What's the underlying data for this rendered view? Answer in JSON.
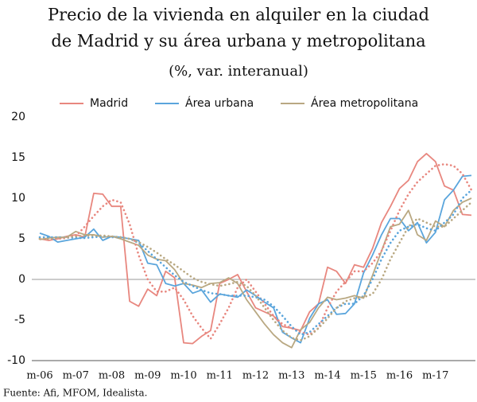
{
  "chart_data": {
    "type": "line",
    "title": [
      "Precio de la vivienda en alquiler en la ciudad",
      "de Madrid y su área urbana y metropolitana"
    ],
    "subtitle": "(%, var. interanual)",
    "source": "Fuente: Afi, MFOM, Idealista.",
    "categories": [
      "m-06",
      null,
      null,
      null,
      "m-07",
      null,
      null,
      null,
      "m-08",
      null,
      null,
      null,
      "m-09",
      null,
      null,
      null,
      "m-10",
      null,
      null,
      null,
      "m-11",
      null,
      null,
      null,
      "m-12",
      null,
      null,
      null,
      "m-13",
      null,
      null,
      null,
      "m-14",
      null,
      null,
      null,
      "m-15",
      null,
      null,
      null,
      "m-16",
      null,
      null,
      null,
      "m-17",
      null,
      null,
      null,
      null
    ],
    "ylim": [
      -10,
      20
    ],
    "yticks": [
      -10,
      -5,
      0,
      5,
      10,
      15,
      20
    ],
    "zero_line": true,
    "legend": "top",
    "series": [
      {
        "name": "Madrid",
        "color": "#e8877f",
        "values": [
          5.0,
          4.8,
          5.0,
          5.3,
          5.5,
          5.2,
          10.6,
          10.5,
          9.0,
          9.0,
          -2.7,
          -3.3,
          -1.2,
          -2.0,
          1.0,
          0.2,
          -7.8,
          -7.9,
          -7.0,
          -6.3,
          -0.5,
          0.0,
          0.6,
          -1.5,
          -3.5,
          -4.0,
          -4.5,
          -5.8,
          -6.0,
          -6.3,
          -4.0,
          -3.0,
          1.5,
          1.0,
          -0.5,
          1.8,
          1.5,
          3.8,
          7.0,
          9.0,
          11.2,
          12.2,
          14.5,
          15.5,
          14.5,
          11.5,
          11.0,
          8.0,
          7.9
        ]
      },
      {
        "name": "Área urbana",
        "color": "#5aa5dc",
        "values": [
          5.7,
          5.3,
          4.6,
          4.8,
          5.0,
          5.2,
          6.2,
          4.8,
          5.3,
          5.2,
          5.0,
          4.8,
          2.0,
          1.8,
          -0.5,
          -0.8,
          -0.5,
          -1.7,
          -1.3,
          -2.8,
          -1.8,
          -2.0,
          -2.2,
          -1.3,
          -2.0,
          -2.8,
          -3.5,
          -6.5,
          -7.2,
          -7.8,
          -4.8,
          -3.0,
          -2.5,
          -4.3,
          -4.2,
          -3.0,
          0.8,
          3.0,
          5.5,
          7.5,
          7.5,
          6.0,
          7.0,
          4.5,
          5.8,
          9.8,
          11.0,
          12.7,
          12.8
        ]
      },
      {
        "name": "Área metropolitana",
        "color": "#b9a882",
        "values": [
          4.9,
          5.1,
          5.2,
          5.2,
          5.9,
          5.5,
          5.5,
          5.2,
          5.3,
          5.0,
          4.6,
          4.2,
          3.0,
          2.5,
          2.3,
          1.2,
          -0.5,
          -0.7,
          -1.0,
          -0.5,
          -0.4,
          0.2,
          -0.5,
          -2.5,
          -4.0,
          -5.5,
          -6.8,
          -7.8,
          -8.4,
          -6.2,
          -5.3,
          -3.5,
          -2.2,
          -2.5,
          -2.3,
          -2.0,
          -2.3,
          0.5,
          3.5,
          6.5,
          6.8,
          8.5,
          5.5,
          4.8,
          7.2,
          6.5,
          8.5,
          9.5,
          10.0
        ]
      },
      {
        "color": "#e8877f",
        "dash": "dotted",
        "values": [
          5,
          5,
          5,
          5.1,
          5.3,
          6.5,
          7.8,
          9,
          9.8,
          9.5,
          6.8,
          3,
          0,
          -1.5,
          -1.5,
          -1,
          -2.5,
          -4.5,
          -6,
          -7.3,
          -5.5,
          -3.5,
          -1,
          0,
          -1.5,
          -3,
          -4.5,
          -5.5,
          -6,
          -6.5,
          -6.8,
          -6,
          -3.5,
          -1.5,
          -0.3,
          1,
          1,
          2,
          3.5,
          6,
          8.5,
          10.5,
          12,
          13,
          14,
          14.2,
          14,
          13,
          11
        ]
      },
      {
        "color": "#5aa5dc",
        "dash": "dotted",
        "values": [
          5.2,
          5.2,
          5.2,
          5.2,
          5.1,
          5.1,
          5.2,
          5.3,
          5.2,
          5.2,
          5,
          4.5,
          3.5,
          2.5,
          1.5,
          0.5,
          -0.3,
          -0.8,
          -1.3,
          -1.7,
          -1.8,
          -2,
          -2,
          -2,
          -2.2,
          -2.5,
          -3.3,
          -4.5,
          -5.8,
          -6.8,
          -6.5,
          -5.5,
          -4.5,
          -3.5,
          -3,
          -3,
          -2,
          0,
          2.5,
          4.5,
          6,
          6.5,
          6.8,
          6.3,
          6,
          7,
          8,
          10,
          11
        ]
      },
      {
        "color": "#b9a882",
        "dash": "dotted",
        "values": [
          5,
          5,
          5.1,
          5.2,
          5.3,
          5.4,
          5.4,
          5.4,
          5.3,
          5.2,
          5,
          4.6,
          4,
          3.3,
          2.5,
          1.8,
          1,
          0.2,
          -0.3,
          -0.6,
          -0.8,
          -0.6,
          -0.3,
          -0.8,
          -2,
          -3.5,
          -5,
          -6.3,
          -7.2,
          -7.5,
          -7,
          -6,
          -4.8,
          -3.5,
          -2.7,
          -2.3,
          -2.2,
          -1.8,
          0,
          2.5,
          4.5,
          6.5,
          7.5,
          7,
          6.5,
          6.5,
          7.5,
          8.5,
          9.5
        ]
      }
    ]
  }
}
